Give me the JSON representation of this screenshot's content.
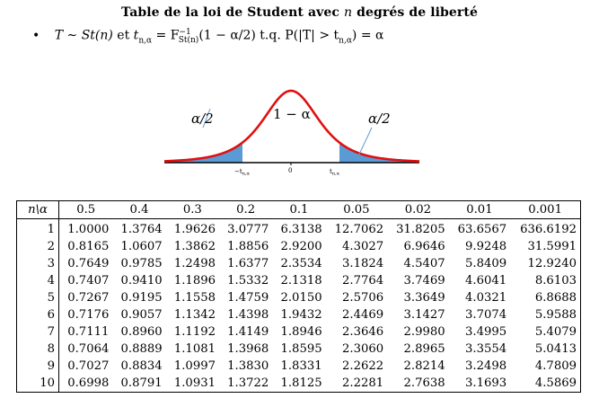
{
  "title": {
    "before": "Table de la loi de Student avec ",
    "var": "n",
    "after": " degrés de liberté"
  },
  "formula": {
    "bullet": "•",
    "text_a": "T ∼ St(n)",
    "text_b": " et ",
    "text_c": "t",
    "sub_c": "n,α",
    "text_d": " = F",
    "sup_d": "−1",
    "sub_d": "St(n)",
    "text_e": "(1 − α/2) t.q. P(|T| > t",
    "sub_e": "n,α",
    "text_f": ") = α"
  },
  "chart_data": {
    "type": "area",
    "distribution": "Student t density",
    "center_label": "1 − α",
    "tail_label_left": "α/2",
    "tail_label_right": "α/2",
    "tick_labels": [
      "−t_{n,α}",
      "0",
      "t_{n,α}"
    ],
    "colors": {
      "curve": "#e01010",
      "tail_fill": "#5b9bd5",
      "axis": "#000000"
    }
  },
  "table": {
    "corner": "n\\α",
    "alphas": [
      "0.5",
      "0.4",
      "0.3",
      "0.2",
      "0.1",
      "0.05",
      "0.02",
      "0.01",
      "0.001"
    ],
    "rows": [
      {
        "n": "1",
        "values": [
          "1.0000",
          "1.3764",
          "1.9626",
          "3.0777",
          "6.3138",
          "12.7062",
          "31.8205",
          "63.6567",
          "636.6192"
        ]
      },
      {
        "n": "2",
        "values": [
          "0.8165",
          "1.0607",
          "1.3862",
          "1.8856",
          "2.9200",
          "4.3027",
          "6.9646",
          "9.9248",
          "31.5991"
        ]
      },
      {
        "n": "3",
        "values": [
          "0.7649",
          "0.9785",
          "1.2498",
          "1.6377",
          "2.3534",
          "3.1824",
          "4.5407",
          "5.8409",
          "12.9240"
        ]
      },
      {
        "n": "4",
        "values": [
          "0.7407",
          "0.9410",
          "1.1896",
          "1.5332",
          "2.1318",
          "2.7764",
          "3.7469",
          "4.6041",
          "8.6103"
        ]
      },
      {
        "n": "5",
        "values": [
          "0.7267",
          "0.9195",
          "1.1558",
          "1.4759",
          "2.0150",
          "2.5706",
          "3.3649",
          "4.0321",
          "6.8688"
        ]
      },
      {
        "n": "6",
        "values": [
          "0.7176",
          "0.9057",
          "1.1342",
          "1.4398",
          "1.9432",
          "2.4469",
          "3.1427",
          "3.7074",
          "5.9588"
        ]
      },
      {
        "n": "7",
        "values": [
          "0.7111",
          "0.8960",
          "1.1192",
          "1.4149",
          "1.8946",
          "2.3646",
          "2.9980",
          "3.4995",
          "5.4079"
        ]
      },
      {
        "n": "8",
        "values": [
          "0.7064",
          "0.8889",
          "1.1081",
          "1.3968",
          "1.8595",
          "2.3060",
          "2.8965",
          "3.3554",
          "5.0413"
        ]
      },
      {
        "n": "9",
        "values": [
          "0.7027",
          "0.8834",
          "1.0997",
          "1.3830",
          "1.8331",
          "2.2622",
          "2.8214",
          "3.2498",
          "4.7809"
        ]
      },
      {
        "n": "10",
        "values": [
          "0.6998",
          "0.8791",
          "1.0931",
          "1.3722",
          "1.8125",
          "2.2281",
          "2.7638",
          "3.1693",
          "4.5869"
        ]
      }
    ]
  }
}
